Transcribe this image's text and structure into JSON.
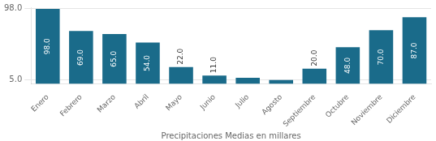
{
  "chart_data": {
    "type": "bar",
    "categories": [
      "Enero",
      "Febrero",
      "Marzo",
      "Abril",
      "Mayo",
      "Junio",
      "Julio",
      "Agosto",
      "Septiembre",
      "Octubre",
      "Noviembre",
      "Diciembre"
    ],
    "values": [
      98.0,
      69.0,
      65.0,
      54.0,
      22.0,
      11.0,
      8.0,
      5.0,
      20.0,
      48.0,
      70.0,
      87.0
    ],
    "value_labels": [
      "98.0",
      "69.0",
      "65.0",
      "54.0",
      "22.0",
      "11.0",
      null,
      null,
      "20.0",
      "48.0",
      "70.0",
      "87.0"
    ],
    "data_labels": true,
    "color": "#1a6b8a",
    "xlabel": "Precipitaciones Medias en millares",
    "ylim": [
      0,
      100
    ],
    "yticks": [
      {
        "value": 98,
        "label": "98.0"
      },
      {
        "value": 5,
        "label": "5.0"
      }
    ],
    "grid": true
  }
}
